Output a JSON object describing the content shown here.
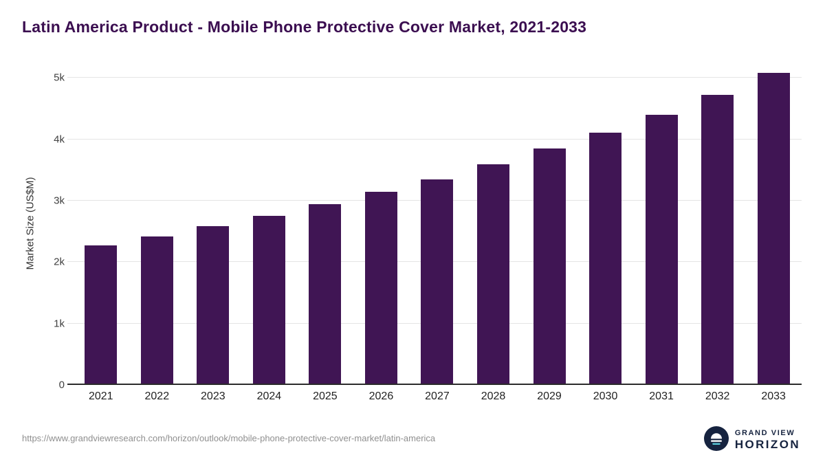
{
  "header": {
    "title": "Latin America Product - Mobile Phone Protective Cover Market, 2021-2033"
  },
  "chart_data": {
    "type": "bar",
    "title": "Latin America Product - Mobile Phone Protective Cover Market, 2021-2033",
    "categories": [
      "2021",
      "2022",
      "2023",
      "2024",
      "2025",
      "2026",
      "2027",
      "2028",
      "2029",
      "2030",
      "2031",
      "2032",
      "2033"
    ],
    "values": [
      2270,
      2420,
      2580,
      2750,
      2940,
      3140,
      3350,
      3590,
      3850,
      4110,
      4400,
      4720,
      5080
    ],
    "xlabel": "",
    "ylabel": "Market Size (US$M)",
    "ylim": [
      0,
      5260
    ],
    "yticks": [
      0,
      1000,
      2000,
      3000,
      4000,
      5000
    ],
    "ytick_labels": [
      "0",
      "1k",
      "2k",
      "3k",
      "4k",
      "5k"
    ],
    "bar_color": "#401554",
    "grid": true,
    "legend_position": "none"
  },
  "footer": {
    "source_url": "https://www.grandviewresearch.com/horizon/outlook/mobile-phone-protective-cover-market/latin-america",
    "logo": {
      "line1": "GRAND VIEW",
      "line2": "HORIZON",
      "icon": "horizon-sun-icon",
      "brand_navy": "#16233f",
      "brand_teal": "#5ac8d8"
    }
  }
}
